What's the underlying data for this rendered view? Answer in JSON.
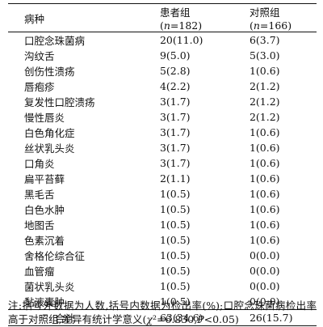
{
  "table": {
    "headers": {
      "disease": "病种",
      "patient_prefix": "患者组(",
      "patient_n": "n",
      "patient_count": "=182)",
      "control_prefix": "对照组(",
      "control_n": "n",
      "control_count": "=166)"
    },
    "rows": [
      {
        "disease": "口腔念珠菌病",
        "patient": "20(11.0)",
        "control": "6(3.7)"
      },
      {
        "disease": "沟纹舌",
        "patient": "9(5.0)",
        "control": "5(3.0)"
      },
      {
        "disease": "创伤性溃疡",
        "patient": "5(2.8)",
        "control": "1(0.6)"
      },
      {
        "disease": "唇疱疹",
        "patient": "4(2.2)",
        "control": "2(1.2)"
      },
      {
        "disease": "复发性口腔溃疡",
        "patient": "3(1.7)",
        "control": "2(1.2)"
      },
      {
        "disease": "慢性唇炎",
        "patient": "3(1.7)",
        "control": "2(1.2)"
      },
      {
        "disease": "白色角化症",
        "patient": "3(1.7)",
        "control": "1(0.6)"
      },
      {
        "disease": "丝状乳头炎",
        "patient": "3(1.7)",
        "control": "1(0.6)"
      },
      {
        "disease": "口角炎",
        "patient": "3(1.7)",
        "control": "1(0.6)"
      },
      {
        "disease": "扁平苔藓",
        "patient": "2(1.1)",
        "control": "1(0.6)"
      },
      {
        "disease": "黑毛舌",
        "patient": "1(0.5)",
        "control": "1(0.6)"
      },
      {
        "disease": "白色水肿",
        "patient": "1(0.5)",
        "control": "1(0.6)"
      },
      {
        "disease": "地图舌",
        "patient": "1(0.5)",
        "control": "1(0.6)"
      },
      {
        "disease": "色素沉着",
        "patient": "1(0.5)",
        "control": "1(0.6)"
      },
      {
        "disease": "舍格伦综合征",
        "patient": "1(0.5)",
        "control": "0(0.0)"
      },
      {
        "disease": "血管瘤",
        "patient": "1(0.5)",
        "control": "0(0.0)"
      },
      {
        "disease": "菌状乳头炎",
        "patient": "1(0.5)",
        "control": "0(0.0)"
      },
      {
        "disease": "黏液囊肿",
        "patient": "1(0.5)",
        "control": "0(0.0)"
      }
    ],
    "total": {
      "label": "合计",
      "patient": "63(34.6)",
      "control": "26(15.7)"
    }
  },
  "note": {
    "text_before": "注:括号外数据为人数,括号内数据为检出率(%);口腔念珠菌病检出率高于对照组,差异有统计学意义(",
    "chi": "χ",
    "chi_value": "²=6.830,",
    "p": "P",
    "text_after": "<0.05)"
  }
}
